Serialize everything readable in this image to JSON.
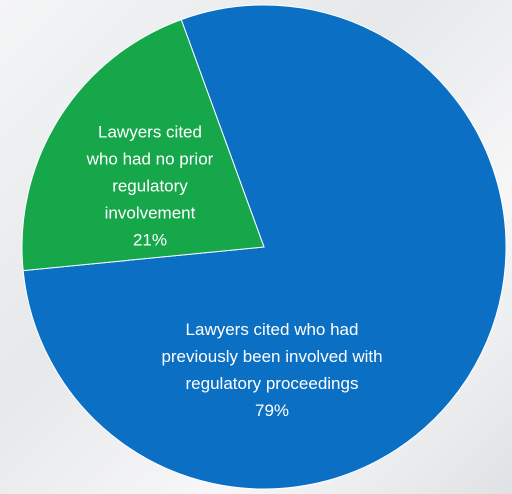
{
  "chart_data": {
    "type": "pie",
    "categories": [
      "Lawyers cited who had\npreviously been involved with\nregulatory proceedings",
      "Lawyers cited\nwho had no prior\nregulatory\ninvolvement"
    ],
    "values": [
      79,
      21
    ],
    "value_labels": [
      "79%",
      "21%"
    ],
    "colors": [
      "#0b6fc4",
      "#16a74b"
    ]
  }
}
